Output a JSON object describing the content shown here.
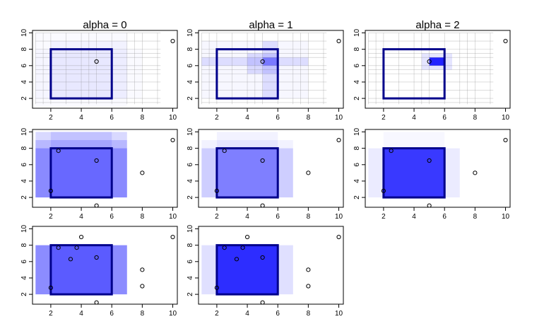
{
  "chart_data": [
    {
      "type": "scatter",
      "title": "alpha = 0",
      "xlim": [
        0.8,
        10.3
      ],
      "ylim": [
        0.8,
        10.3
      ],
      "xticks": [
        2,
        4,
        6,
        8,
        10
      ],
      "yticks": [
        2,
        4,
        6,
        8,
        10
      ],
      "target_rect": [
        2,
        6,
        2,
        8
      ],
      "points": [
        [
          5,
          6.5
        ],
        [
          10,
          9
        ]
      ],
      "grid": true,
      "shading": [
        {
          "x": [
            2,
            6
          ],
          "y": [
            2,
            8
          ],
          "alpha": 0.02
        },
        {
          "x": [
            2,
            7
          ],
          "y": [
            2,
            9
          ],
          "alpha": 0.03
        },
        {
          "x": [
            1,
            7
          ],
          "y": [
            1,
            10
          ],
          "alpha": 0.02
        },
        {
          "x": [
            1,
            8
          ],
          "y": [
            2,
            8
          ],
          "alpha": 0.02
        }
      ]
    },
    {
      "type": "scatter",
      "title": "alpha = 1",
      "xlim": [
        0.8,
        10.3
      ],
      "ylim": [
        0.8,
        10.3
      ],
      "xticks": [
        2,
        4,
        6,
        8,
        10
      ],
      "yticks": [
        2,
        4,
        6,
        8,
        10
      ],
      "target_rect": [
        2,
        6,
        2,
        8
      ],
      "points": [
        [
          5,
          6.5
        ],
        [
          10,
          9
        ]
      ],
      "grid": true,
      "shading": [
        {
          "x": [
            1,
            8
          ],
          "y": [
            2,
            9
          ],
          "alpha": 0.03
        },
        {
          "x": [
            4,
            6
          ],
          "y": [
            5,
            7.5
          ],
          "alpha": 0.12
        },
        {
          "x": [
            5,
            6
          ],
          "y": [
            2,
            9
          ],
          "alpha": 0.1
        },
        {
          "x": [
            1,
            8
          ],
          "y": [
            6,
            7
          ],
          "alpha": 0.1
        },
        {
          "x": [
            5,
            6
          ],
          "y": [
            6,
            7
          ],
          "alpha": 0.3
        }
      ]
    },
    {
      "type": "scatter",
      "title": "alpha = 2",
      "xlim": [
        0.8,
        10.3
      ],
      "ylim": [
        0.8,
        10.3
      ],
      "xticks": [
        2,
        4,
        6,
        8,
        10
      ],
      "yticks": [
        2,
        4,
        6,
        8,
        10
      ],
      "target_rect": [
        2,
        6,
        2,
        8
      ],
      "points": [
        [
          5,
          6.5
        ],
        [
          10,
          9
        ]
      ],
      "grid": true,
      "shading": [
        {
          "x": [
            5,
            6
          ],
          "y": [
            6,
            7
          ],
          "alpha": 0.85
        },
        {
          "x": [
            4.5,
            6.5
          ],
          "y": [
            5.5,
            7.5
          ],
          "alpha": 0.1
        }
      ]
    },
    {
      "type": "scatter",
      "title": "",
      "xlim": [
        0.8,
        10.3
      ],
      "ylim": [
        0.8,
        10.3
      ],
      "xticks": [
        2,
        4,
        6,
        8,
        10
      ],
      "yticks": [
        2,
        4,
        6,
        8,
        10
      ],
      "target_rect": [
        2,
        6,
        2,
        8
      ],
      "points": [
        [
          2.5,
          7.7
        ],
        [
          5,
          6.5
        ],
        [
          10,
          9
        ],
        [
          8,
          5
        ],
        [
          2,
          2.8
        ],
        [
          5,
          1
        ]
      ],
      "grid": false,
      "shading": [
        {
          "x": [
            1,
            7
          ],
          "y": [
            2,
            10
          ],
          "alpha": 0.15
        },
        {
          "x": [
            1,
            7
          ],
          "y": [
            2,
            9
          ],
          "alpha": 0.15
        },
        {
          "x": [
            1,
            7
          ],
          "y": [
            2,
            8
          ],
          "alpha": 0.25
        },
        {
          "x": [
            2,
            6
          ],
          "y": [
            2,
            10
          ],
          "alpha": 0.1
        },
        {
          "x": [
            2,
            6
          ],
          "y": [
            2,
            8
          ],
          "alpha": 0.15
        }
      ]
    },
    {
      "type": "scatter",
      "title": "",
      "xlim": [
        0.8,
        10.3
      ],
      "ylim": [
        0.8,
        10.3
      ],
      "xticks": [
        2,
        4,
        6,
        8,
        10
      ],
      "yticks": [
        2,
        4,
        6,
        8,
        10
      ],
      "target_rect": [
        2,
        6,
        2,
        8
      ],
      "points": [
        [
          2.5,
          7.7
        ],
        [
          5,
          6.5
        ],
        [
          10,
          9
        ],
        [
          8,
          5
        ],
        [
          2,
          2.8
        ],
        [
          5,
          1
        ]
      ],
      "grid": false,
      "shading": [
        {
          "x": [
            1,
            7
          ],
          "y": [
            2,
            9
          ],
          "alpha": 0.05
        },
        {
          "x": [
            1,
            7
          ],
          "y": [
            2,
            8
          ],
          "alpha": 0.15
        },
        {
          "x": [
            2,
            6
          ],
          "y": [
            2,
            10
          ],
          "alpha": 0.05
        },
        {
          "x": [
            2,
            6
          ],
          "y": [
            2,
            8
          ],
          "alpha": 0.35
        }
      ]
    },
    {
      "type": "scatter",
      "title": "",
      "xlim": [
        0.8,
        10.3
      ],
      "ylim": [
        0.8,
        10.3
      ],
      "xticks": [
        2,
        4,
        6,
        8,
        10
      ],
      "yticks": [
        2,
        4,
        6,
        8,
        10
      ],
      "target_rect": [
        2,
        6,
        2,
        8
      ],
      "points": [
        [
          2.5,
          7.7
        ],
        [
          5,
          6.5
        ],
        [
          10,
          9
        ],
        [
          8,
          5
        ],
        [
          2,
          2.8
        ],
        [
          5,
          1
        ]
      ],
      "grid": false,
      "shading": [
        {
          "x": [
            1,
            7
          ],
          "y": [
            2,
            8
          ],
          "alpha": 0.08
        },
        {
          "x": [
            2,
            6
          ],
          "y": [
            2,
            10
          ],
          "alpha": 0.03
        },
        {
          "x": [
            2,
            6
          ],
          "y": [
            2,
            8
          ],
          "alpha": 0.75
        }
      ]
    },
    {
      "type": "scatter",
      "title": "",
      "xlim": [
        0.8,
        10.3
      ],
      "ylim": [
        0.8,
        10.3
      ],
      "xticks": [
        2,
        4,
        6,
        8,
        10
      ],
      "yticks": [
        2,
        4,
        6,
        8,
        10
      ],
      "target_rect": [
        2,
        6,
        2,
        8
      ],
      "points": [
        [
          2.5,
          7.7
        ],
        [
          3.3,
          6.3
        ],
        [
          4,
          9
        ],
        [
          3.7,
          7.7
        ],
        [
          5,
          6.5
        ],
        [
          10,
          9
        ],
        [
          8,
          5
        ],
        [
          8,
          3
        ],
        [
          2,
          2.8
        ],
        [
          5,
          1
        ]
      ],
      "grid": false,
      "shading": [
        {
          "x": [
            1,
            7
          ],
          "y": [
            2,
            8
          ],
          "alpha": 0.45
        },
        {
          "x": [
            2,
            6
          ],
          "y": [
            2,
            8
          ],
          "alpha": 0.35
        }
      ]
    },
    {
      "type": "scatter",
      "title": "",
      "xlim": [
        0.8,
        10.3
      ],
      "ylim": [
        0.8,
        10.3
      ],
      "xticks": [
        2,
        4,
        6,
        8,
        10
      ],
      "yticks": [
        2,
        4,
        6,
        8,
        10
      ],
      "target_rect": [
        2,
        6,
        2,
        8
      ],
      "points": [
        [
          2.5,
          7.7
        ],
        [
          3.3,
          6.3
        ],
        [
          4,
          9
        ],
        [
          3.7,
          7.7
        ],
        [
          5,
          6.5
        ],
        [
          10,
          9
        ],
        [
          8,
          5
        ],
        [
          8,
          3
        ],
        [
          2,
          2.8
        ],
        [
          5,
          1
        ]
      ],
      "grid": false,
      "shading": [
        {
          "x": [
            1,
            7
          ],
          "y": [
            2,
            8
          ],
          "alpha": 0.12
        },
        {
          "x": [
            2,
            6
          ],
          "y": [
            2,
            8
          ],
          "alpha": 0.8
        }
      ]
    }
  ],
  "colors": {
    "fill": "#0000ff",
    "rect_border": "#00008b",
    "axis": "#000000",
    "grid": "#808080",
    "background": "#ffffff"
  }
}
